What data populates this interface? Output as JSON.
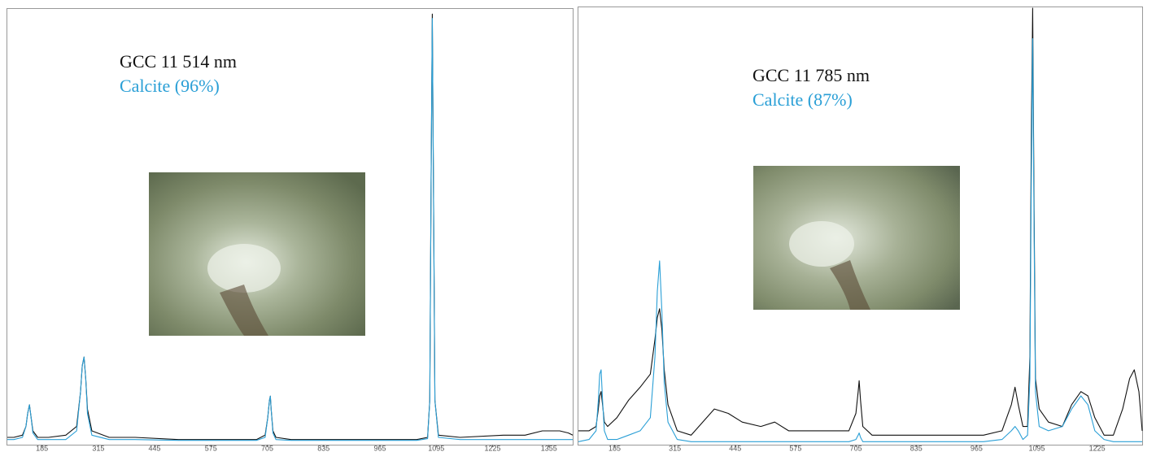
{
  "chart_data": [
    {
      "type": "line",
      "xlim": [
        105,
        1410
      ],
      "ylim": [
        0,
        100
      ],
      "xticks": [
        185,
        315,
        445,
        575,
        705,
        835,
        965,
        1095,
        1225,
        1355
      ],
      "x": [
        105,
        120,
        140,
        148,
        152,
        156,
        160,
        164,
        175,
        200,
        240,
        265,
        274,
        278,
        282,
        286,
        290,
        300,
        340,
        400,
        500,
        600,
        680,
        700,
        706,
        710,
        712,
        714,
        718,
        725,
        760,
        850,
        950,
        1050,
        1075,
        1080,
        1083,
        1086,
        1089,
        1092,
        1100,
        1150,
        1250,
        1300,
        1340,
        1360,
        1380,
        1400,
        1410
      ],
      "series": [
        {
          "name": "GCC 11 514 nm",
          "color": "#111111",
          "values": [
            1.5,
            1.5,
            2,
            4,
            7,
            9,
            6,
            3,
            1.5,
            1.5,
            2,
            4,
            12,
            18,
            20,
            15,
            8,
            3,
            1.5,
            1.5,
            1,
            1,
            1,
            2,
            6,
            10,
            11,
            8,
            3,
            1.5,
            1,
            1,
            1,
            1,
            1.5,
            10,
            60,
            99,
            55,
            10,
            2,
            1.5,
            2,
            2,
            3,
            3,
            3,
            2.5,
            2
          ]
        },
        {
          "name": "Calcite (96%)",
          "color": "#2a9fd6",
          "values": [
            1,
            1,
            1.5,
            4,
            7,
            9,
            6,
            2.5,
            1,
            1,
            1,
            3,
            12,
            18,
            20,
            15,
            7,
            2,
            1,
            1,
            0.8,
            0.8,
            0.8,
            1.5,
            6,
            10,
            11,
            8,
            2.5,
            1,
            0.8,
            0.8,
            0.8,
            0.8,
            1.2,
            10,
            60,
            98,
            55,
            10,
            1.5,
            1,
            1,
            1,
            1,
            1,
            1,
            1,
            1
          ]
        }
      ]
    },
    {
      "type": "line",
      "xlim": [
        107,
        1322
      ],
      "ylim": [
        0,
        100
      ],
      "xticks": [
        185,
        315,
        445,
        575,
        705,
        835,
        965,
        1095,
        1225
      ],
      "x": [
        107,
        130,
        145,
        150,
        153,
        156,
        159,
        163,
        170,
        190,
        215,
        240,
        262,
        272,
        277,
        282,
        287,
        292,
        300,
        320,
        350,
        400,
        430,
        460,
        500,
        530,
        560,
        600,
        650,
        690,
        705,
        710,
        712,
        715,
        720,
        740,
        800,
        900,
        980,
        1020,
        1040,
        1048,
        1055,
        1065,
        1075,
        1080,
        1083,
        1086,
        1089,
        1092,
        1100,
        1120,
        1150,
        1170,
        1190,
        1205,
        1220,
        1240,
        1260,
        1280,
        1295,
        1305,
        1315,
        1322
      ],
      "series": [
        {
          "name": "GCC 11 785 nm",
          "color": "#111111",
          "values": [
            3,
            3,
            4,
            8,
            11,
            12,
            9,
            5,
            4,
            6,
            10,
            13,
            16,
            24,
            29,
            31,
            26,
            17,
            9,
            3,
            2,
            8,
            7,
            5,
            4,
            5,
            3,
            3,
            3,
            3,
            7,
            12,
            14.5,
            10,
            4,
            2,
            2,
            2,
            2,
            3,
            9,
            13,
            9,
            4,
            4,
            20,
            70,
            100,
            55,
            15,
            8,
            5,
            4,
            9,
            12,
            11,
            6,
            2,
            2,
            8,
            15,
            17,
            12,
            3
          ]
        },
        {
          "name": "Calcite (87%)",
          "color": "#2a9fd6",
          "values": [
            0.5,
            1,
            3,
            10,
            16,
            17,
            10,
            3,
            1,
            1,
            2,
            3,
            6,
            20,
            35,
            42,
            30,
            14,
            5,
            1,
            0.5,
            0.5,
            0.5,
            0.5,
            0.5,
            0.5,
            0.5,
            0.5,
            0.5,
            0.5,
            1,
            2,
            2.5,
            1.5,
            0.5,
            0.5,
            0.5,
            0.5,
            0.5,
            1,
            3,
            4,
            3,
            1,
            2,
            15,
            60,
            93,
            50,
            12,
            4,
            3,
            4,
            8,
            11,
            9,
            3,
            1,
            0.5,
            0.5,
            0.5,
            0.5,
            0.5,
            0.5
          ]
        }
      ]
    }
  ]
}
